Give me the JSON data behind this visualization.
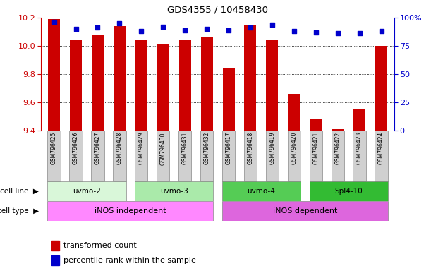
{
  "title": "GDS4355 / 10458430",
  "samples": [
    "GSM796425",
    "GSM796426",
    "GSM796427",
    "GSM796428",
    "GSM796429",
    "GSM796430",
    "GSM796431",
    "GSM796432",
    "GSM796417",
    "GSM796418",
    "GSM796419",
    "GSM796420",
    "GSM796421",
    "GSM796422",
    "GSM796423",
    "GSM796424"
  ],
  "transformed_count": [
    10.19,
    10.04,
    10.08,
    10.14,
    10.04,
    10.01,
    10.04,
    10.06,
    9.84,
    10.15,
    10.04,
    9.66,
    9.48,
    9.41,
    9.55,
    10.0
  ],
  "percentile_rank": [
    96,
    90,
    91,
    95,
    88,
    92,
    89,
    90,
    89,
    91,
    94,
    88,
    87,
    86,
    86,
    88
  ],
  "ylim_left": [
    9.4,
    10.2
  ],
  "ylim_right": [
    0,
    100
  ],
  "yticks_left": [
    9.4,
    9.6,
    9.8,
    10.0,
    10.2
  ],
  "yticks_right": [
    0,
    25,
    50,
    75,
    100
  ],
  "cell_line_groups": [
    {
      "label": "uvmo-2",
      "start": 0,
      "end": 3,
      "color": "#d9f7d9"
    },
    {
      "label": "uvmo-3",
      "start": 4,
      "end": 7,
      "color": "#aaeaaa"
    },
    {
      "label": "uvmo-4",
      "start": 8,
      "end": 11,
      "color": "#55cc55"
    },
    {
      "label": "Spl4-10",
      "start": 12,
      "end": 15,
      "color": "#33bb33"
    }
  ],
  "cell_type_groups": [
    {
      "label": "iNOS independent",
      "start": 0,
      "end": 7,
      "color": "#ff88ff"
    },
    {
      "label": "iNOS dependent",
      "start": 8,
      "end": 15,
      "color": "#dd66dd"
    }
  ],
  "bar_color": "#cc0000",
  "dot_color": "#0000cc",
  "grid_color": "#000000",
  "axis_left_color": "#cc0000",
  "axis_right_color": "#0000cc",
  "bar_width": 0.55,
  "sample_bg_color": "#d0d0d0",
  "legend_items": [
    {
      "label": "transformed count",
      "color": "#cc0000",
      "marker": "s"
    },
    {
      "label": "percentile rank within the sample",
      "color": "#0000cc",
      "marker": "s"
    }
  ]
}
